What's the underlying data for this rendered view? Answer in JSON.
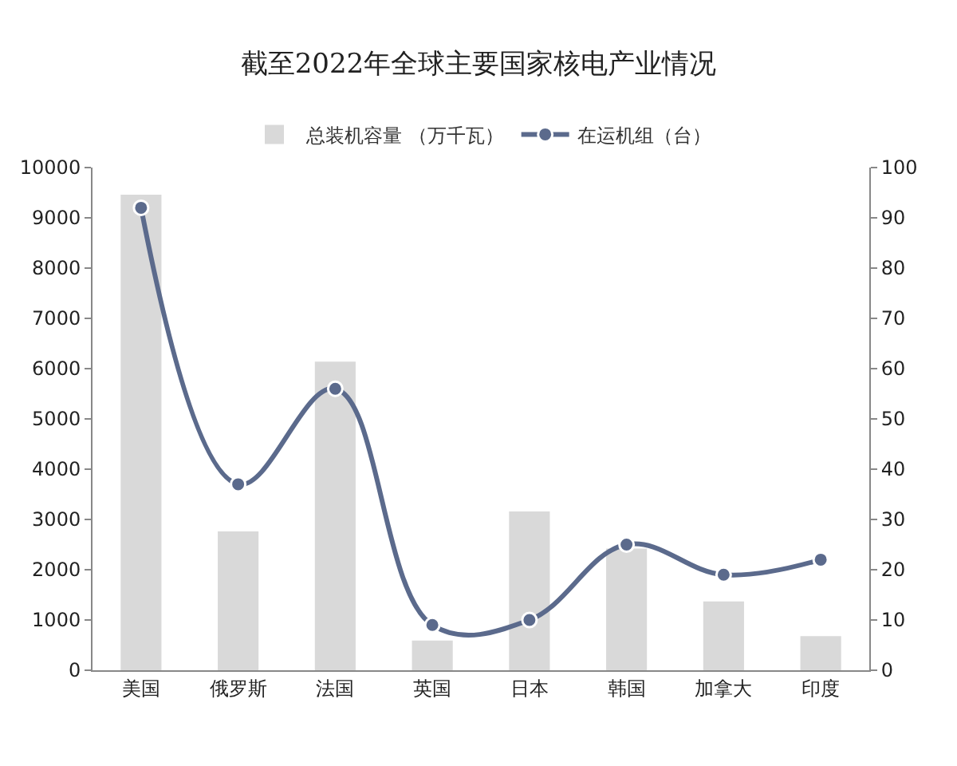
{
  "chart_data": {
    "type": "bar",
    "title": "截至2022年全球主要国家核电产业情况",
    "categories": [
      "美国",
      "俄罗斯",
      "法国",
      "英国",
      "日本",
      "韩国",
      "加拿大",
      "印度"
    ],
    "series": [
      {
        "name": "总装机容量 （万千瓦）",
        "color": "#d9d9d9",
        "values": [
          9460,
          2760,
          6140,
          590,
          3160,
          2420,
          1370,
          680
        ]
      },
      {
        "name": "在运机组（台）",
        "type": "line",
        "axis": "y2",
        "color": "#5b6a8c",
        "marker": "circle",
        "line_style": "solid",
        "values": [
          92,
          37,
          56,
          9,
          10,
          25,
          19,
          22
        ]
      }
    ],
    "ylim": [
      0,
      10000
    ],
    "yticks": [
      0,
      1000,
      2000,
      3000,
      4000,
      5000,
      6000,
      7000,
      8000,
      9000,
      10000
    ],
    "y2lim": [
      0,
      100
    ],
    "y2ticks": [
      0,
      10,
      20,
      30,
      40,
      50,
      60,
      70,
      80,
      90,
      100
    ],
    "grid": false,
    "legend": "top"
  }
}
